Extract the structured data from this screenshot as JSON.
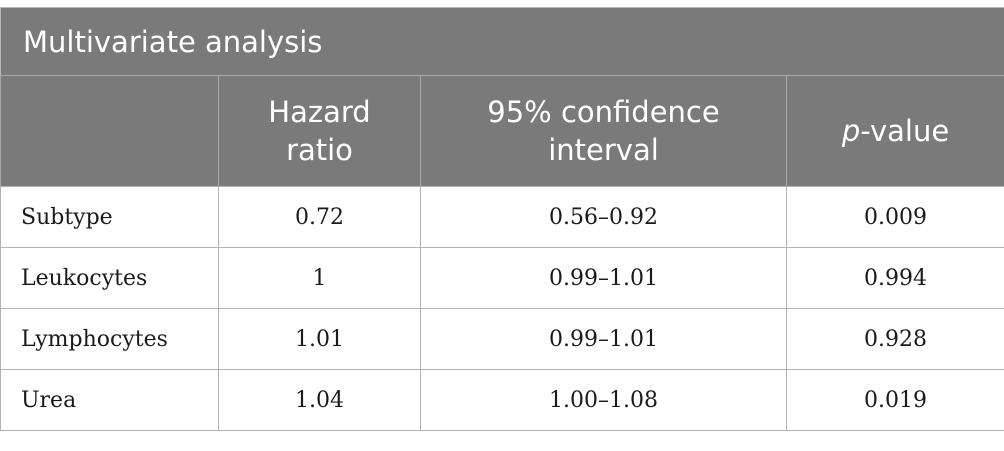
{
  "table": {
    "title": "Multivariate analysis",
    "headers": {
      "col2_line1": "Hazard",
      "col2_line2": "ratio",
      "col3_line1": "95% confidence",
      "col3_line2": "interval",
      "col4_italic": "p",
      "col4_rest": "-value"
    },
    "rows": [
      {
        "label": "Subtype",
        "hr": "0.72",
        "ci": "0.56–0.92",
        "p": "0.009"
      },
      {
        "label": "Leukocytes",
        "hr": "1",
        "ci": "0.99–1.01",
        "p": "0.994"
      },
      {
        "label": "Lymphocytes",
        "hr": "1.01",
        "ci": "0.99–1.01",
        "p": "0.928"
      },
      {
        "label": "Urea",
        "hr": "1.04",
        "ci": "1.00–1.08",
        "p": "0.019"
      }
    ]
  },
  "colors": {
    "header_bg": "#7a7a7a",
    "header_text": "#ffffff",
    "grid_line": "#b3b3b3"
  }
}
